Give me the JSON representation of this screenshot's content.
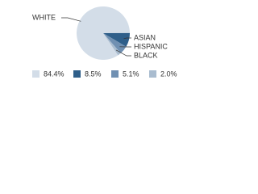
{
  "chart_data": {
    "type": "pie",
    "categories": [
      "WHITE",
      "ASIAN",
      "HISPANIC",
      "BLACK"
    ],
    "values": [
      84.4,
      8.5,
      5.1,
      2.0
    ],
    "value_labels": [
      "84.4%",
      "8.5%",
      "5.1%",
      "2.0%"
    ],
    "colors": [
      "#d3dde8",
      "#2f5f8a",
      "#7090b2",
      "#a9bccf"
    ]
  }
}
